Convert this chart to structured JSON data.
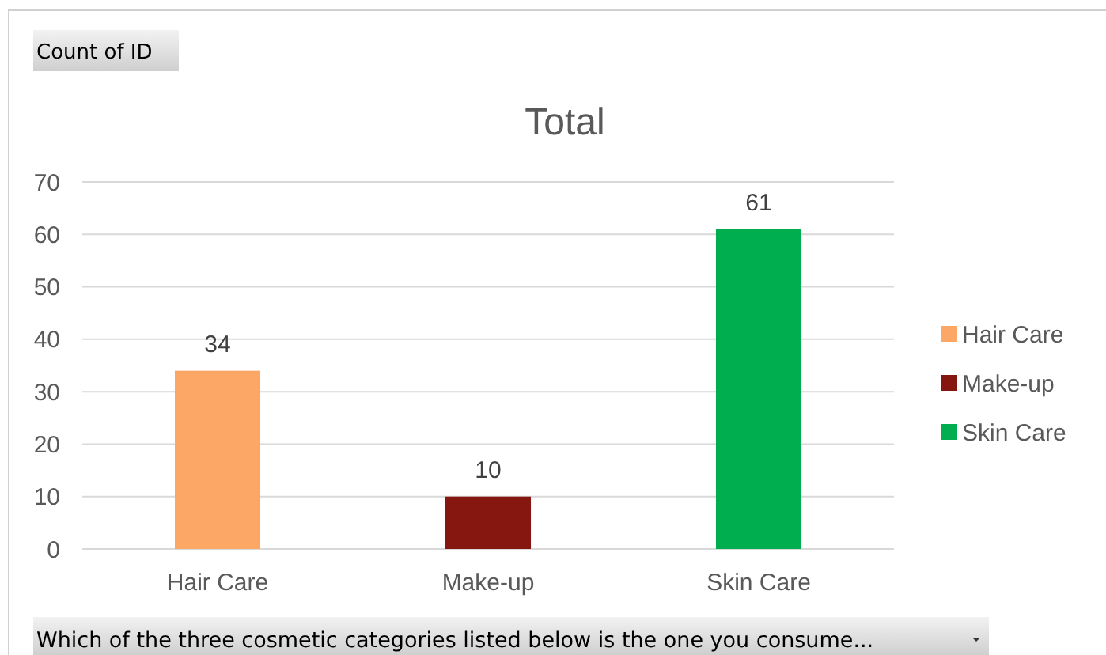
{
  "chart_data": {
    "type": "bar",
    "title": "Total",
    "annotations": [
      "Count of ID"
    ],
    "xlabel": "Which of the three cosmetic categories listed below is the one you consume...",
    "categories": [
      "Hair Care",
      "Make-up",
      "Skin Care"
    ],
    "series": [
      {
        "name": "Hair Care",
        "color": "#fda766",
        "values": [
          34,
          null,
          null
        ]
      },
      {
        "name": "Make-up",
        "color": "#851710",
        "values": [
          null,
          10,
          null
        ]
      },
      {
        "name": "Skin Care",
        "color": "#00ae50",
        "values": [
          null,
          null,
          61
        ]
      }
    ],
    "stacked": true,
    "ylim": [
      0,
      70
    ],
    "yticks": [
      0,
      10,
      20,
      30,
      40,
      50,
      60,
      70
    ],
    "grid": "y",
    "legend": "right",
    "data_labels": true
  }
}
